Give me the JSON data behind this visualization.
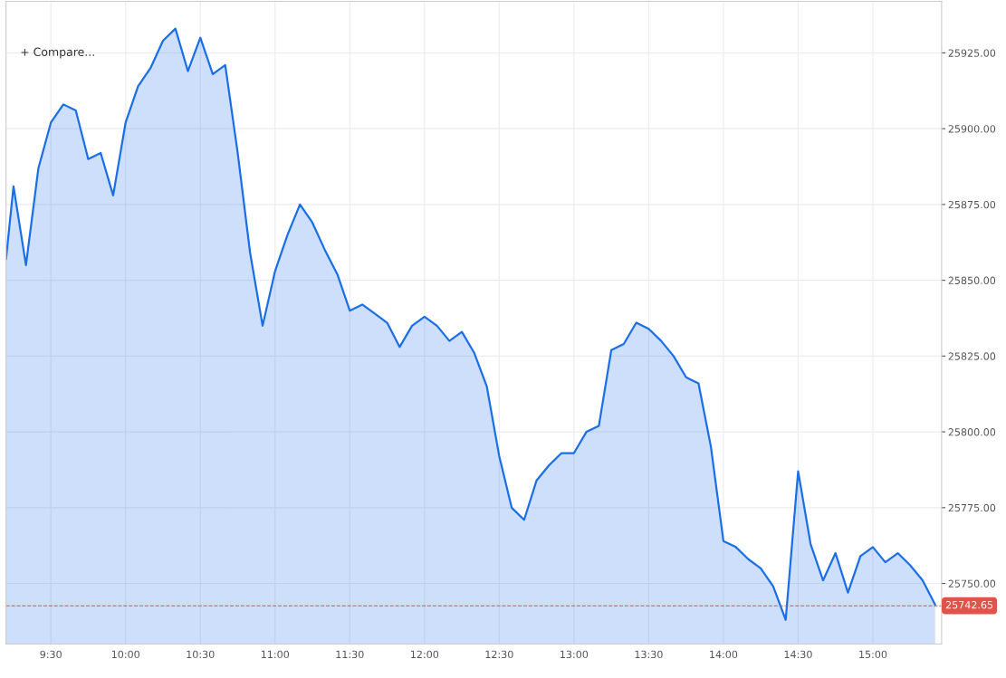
{
  "chart_data": {
    "type": "area",
    "annotations": [
      "+ Compare..."
    ],
    "x": [
      9.2,
      9.25,
      9.3333,
      9.4167,
      9.5,
      9.5833,
      9.6667,
      9.75,
      9.8333,
      9.9167,
      10.0,
      10.0833,
      10.1667,
      10.25,
      10.3333,
      10.4167,
      10.5,
      10.5833,
      10.6667,
      10.75,
      10.8333,
      10.9167,
      11.0,
      11.0833,
      11.1667,
      11.25,
      11.3333,
      11.4167,
      11.5,
      11.5833,
      11.6667,
      11.75,
      11.8333,
      11.9167,
      12.0,
      12.0833,
      12.1667,
      12.25,
      12.3333,
      12.4167,
      12.5,
      12.5833,
      12.6667,
      12.75,
      12.8333,
      12.9167,
      13.0,
      13.0833,
      13.1667,
      13.25,
      13.3333,
      13.4167,
      13.5,
      13.5833,
      13.6667,
      13.75,
      13.8333,
      13.9167,
      14.0,
      14.0833,
      14.1667,
      14.25,
      14.3333,
      14.4167,
      14.5,
      14.5833,
      14.6667,
      14.75,
      14.8333,
      14.9167,
      15.0,
      15.0833,
      15.1667,
      15.25,
      15.3333,
      15.4167
    ],
    "series": [
      {
        "color": "#1a6fe8",
        "values": [
          25857,
          25881,
          25855,
          25887,
          25902,
          25908,
          25906,
          25890,
          25892,
          25878,
          25902,
          25914,
          25920,
          25929,
          25933,
          25919,
          25930,
          25918,
          25921,
          25892,
          25859,
          25835,
          25853,
          25865,
          25875,
          25869,
          25860,
          25852,
          25840,
          25842,
          25839,
          25836,
          25828,
          25835,
          25838,
          25835,
          25830,
          25833,
          25826,
          25815,
          25792,
          25775,
          25771,
          25784,
          25789,
          25793,
          25793,
          25800,
          25802,
          25827,
          25829,
          25836,
          25834,
          25830,
          25825,
          25818,
          25816,
          25795,
          25764,
          25762,
          25758,
          25755,
          25749,
          25738,
          25787,
          25763,
          25751,
          25760,
          25747,
          25759,
          25762,
          25757,
          25760,
          25756,
          25751,
          25743
        ]
      }
    ],
    "xlim": [
      9.2,
      15.46
    ],
    "ylim": [
      25730,
      25942
    ],
    "xticks": [
      {
        "value": 9.5,
        "label": "9:30"
      },
      {
        "value": 10,
        "label": "10:00"
      },
      {
        "value": 10.5,
        "label": "10:30"
      },
      {
        "value": 11,
        "label": "11:00"
      },
      {
        "value": 11.5,
        "label": "11:30"
      },
      {
        "value": 12,
        "label": "12:00"
      },
      {
        "value": 12.5,
        "label": "12:30"
      },
      {
        "value": 13,
        "label": "13:00"
      },
      {
        "value": 13.5,
        "label": "13:30"
      },
      {
        "value": 14,
        "label": "14:00"
      },
      {
        "value": 14.5,
        "label": "14:30"
      },
      {
        "value": 15,
        "label": "15:00"
      }
    ],
    "yticks": [
      {
        "value": 25750,
        "label": "25750.00"
      },
      {
        "value": 25775,
        "label": "25775.00"
      },
      {
        "value": 25800,
        "label": "25800.00"
      },
      {
        "value": 25825,
        "label": "25825.00"
      },
      {
        "value": 25850,
        "label": "25850.00"
      },
      {
        "value": 25875,
        "label": "25875.00"
      },
      {
        "value": 25900,
        "label": "25900.00"
      },
      {
        "value": 25925,
        "label": "25925.00"
      }
    ],
    "ref_lines": [
      {
        "axis": "y",
        "value": 25742.65,
        "label": "25742.65",
        "color": "#e0534a",
        "line_style": "dashed"
      }
    ],
    "grid": true,
    "marker": "none",
    "line_style": "solid"
  }
}
